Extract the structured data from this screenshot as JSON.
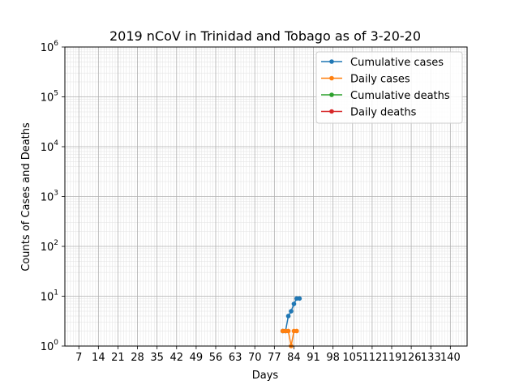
{
  "chart_data": {
    "type": "line",
    "title": "2019 nCoV in Trinidad and Tobago as of 3-20-20",
    "xlabel": "Days",
    "ylabel": "Counts of Cases and Deaths",
    "xlim": [
      2,
      146
    ],
    "ylim": [
      1,
      1000000
    ],
    "y_scale": "log",
    "grid": true,
    "legend_position": "top-right",
    "x_ticks": [
      7,
      14,
      21,
      28,
      35,
      42,
      49,
      56,
      63,
      70,
      77,
      84,
      91,
      98,
      105,
      112,
      119,
      126,
      133,
      140
    ],
    "y_tick_exponents": [
      0,
      1,
      2,
      3,
      4,
      5,
      6
    ],
    "series": [
      {
        "name": "Cumulative cases",
        "color": "#1f77b4",
        "x": [
          80,
          81,
          82,
          83,
          84,
          85,
          86
        ],
        "y": [
          2,
          2,
          4,
          5,
          7,
          9,
          9
        ]
      },
      {
        "name": "Daily cases",
        "color": "#ff7f0e",
        "x": [
          80,
          81,
          82,
          83,
          84,
          85
        ],
        "y": [
          2,
          2,
          2,
          1,
          2,
          2
        ]
      },
      {
        "name": "Cumulative deaths",
        "color": "#2ca02c",
        "x": [],
        "y": []
      },
      {
        "name": "Daily deaths",
        "color": "#d62728",
        "x": [],
        "y": []
      }
    ]
  }
}
